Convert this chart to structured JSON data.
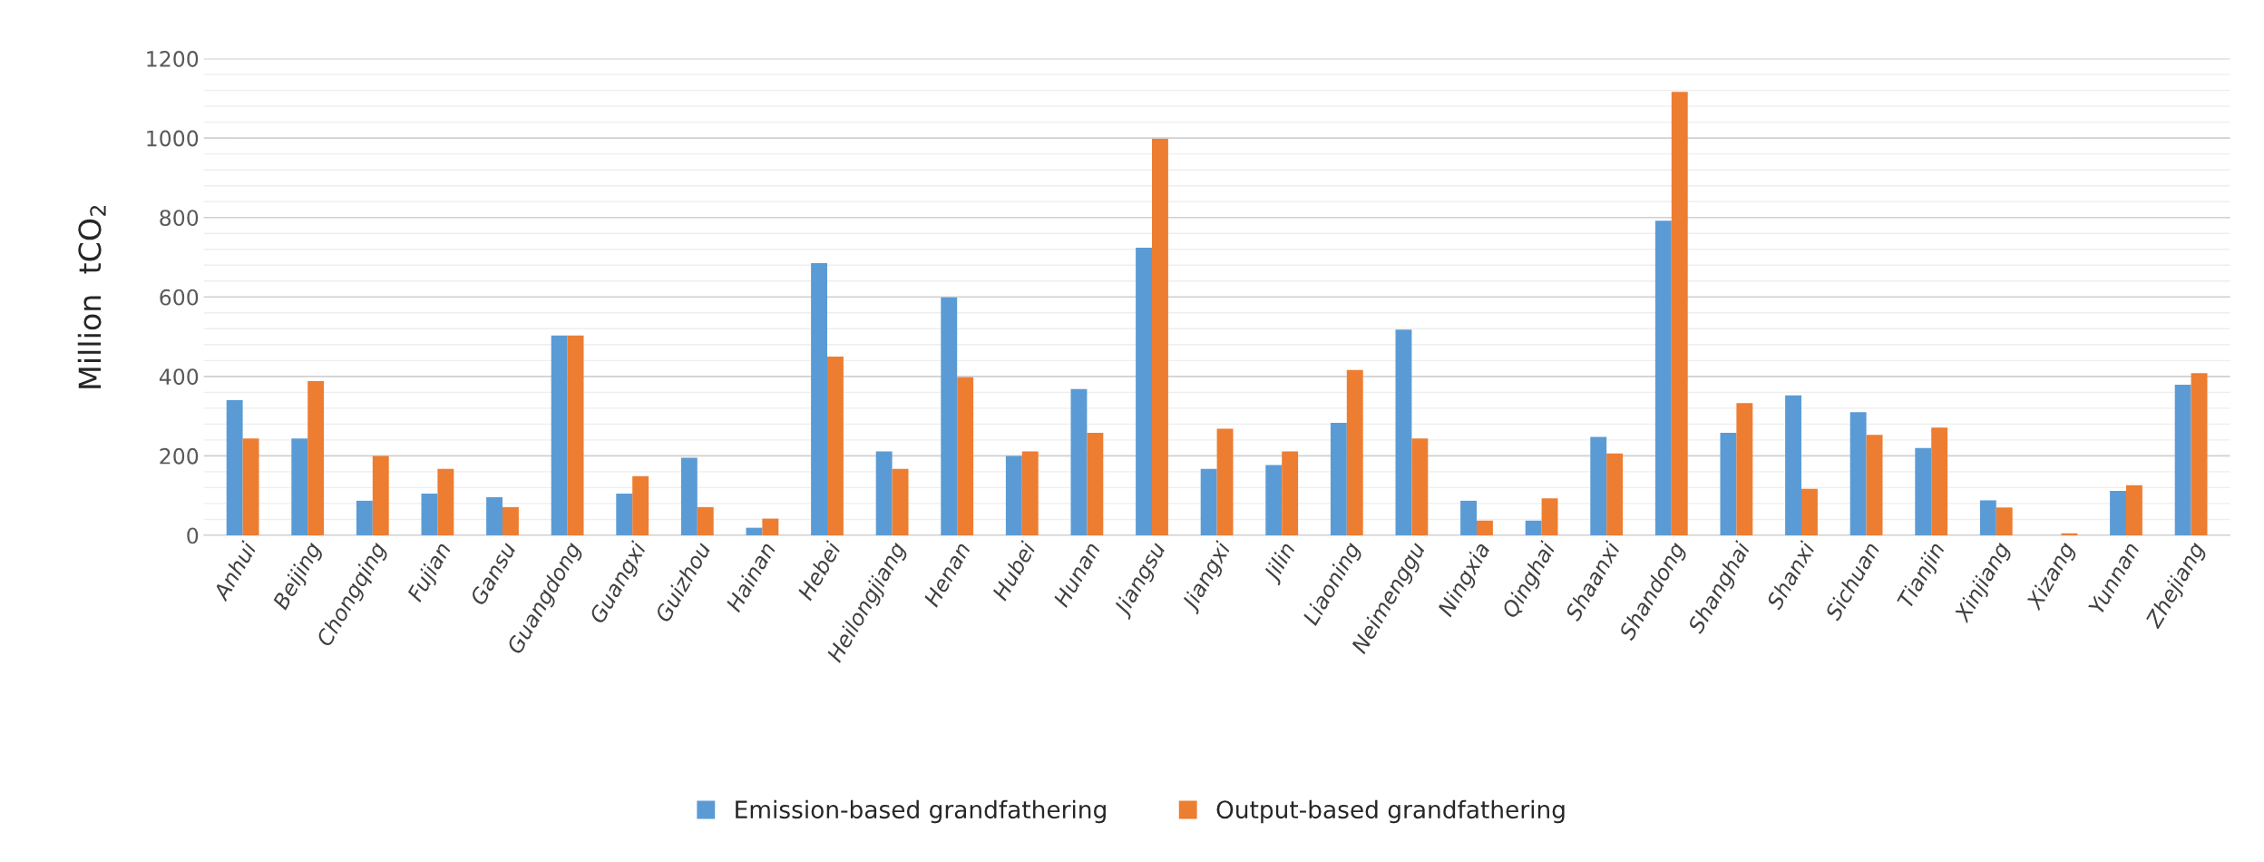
{
  "chart_data": {
    "type": "bar",
    "ylabel": "Million  tCO$_{2}$",
    "categories": [
      "Anhui",
      "Beijing",
      "Chongqing",
      "Fujian",
      "Gansu",
      "Guangdong",
      "Guangxi",
      "Guizhou",
      "Hainan",
      "Hebei",
      "Heilongjiang",
      "Henan",
      "Hubei",
      "Hunan",
      "Jiangsu",
      "Jiangxi",
      "Jilin",
      "Liaoning",
      "Neimenggu",
      "Ningxia",
      "Qinghai",
      "Shaanxi",
      "Shandong",
      "Shanghai",
      "Shanxi",
      "Sichuan",
      "Tianjin",
      "Xinjiang",
      "Xizang",
      "Yunnan",
      "Zhejiang"
    ],
    "series": [
      {
        "name": "Emission-based grandfathering",
        "color": "#5b9bd5",
        "values": [
          340,
          244,
          87,
          105,
          96,
          503,
          105,
          195,
          19,
          685,
          211,
          599,
          200,
          368,
          724,
          167,
          177,
          283,
          518,
          87,
          37,
          248,
          792,
          258,
          352,
          310,
          220,
          88,
          null,
          112,
          379
        ]
      },
      {
        "name": "Output-based grandfathering",
        "color": "#ed7d31",
        "values": [
          244,
          388,
          200,
          167,
          71,
          503,
          149,
          71,
          42,
          450,
          167,
          398,
          211,
          258,
          998,
          268,
          211,
          416,
          244,
          37,
          93,
          206,
          1116,
          333,
          117,
          253,
          271,
          70,
          5,
          126,
          408
        ]
      }
    ],
    "ylim": [
      0,
      1200
    ],
    "yticks": [
      0,
      200,
      400,
      600,
      800,
      1000,
      1200
    ],
    "grid": "y",
    "legend": "bottom"
  }
}
